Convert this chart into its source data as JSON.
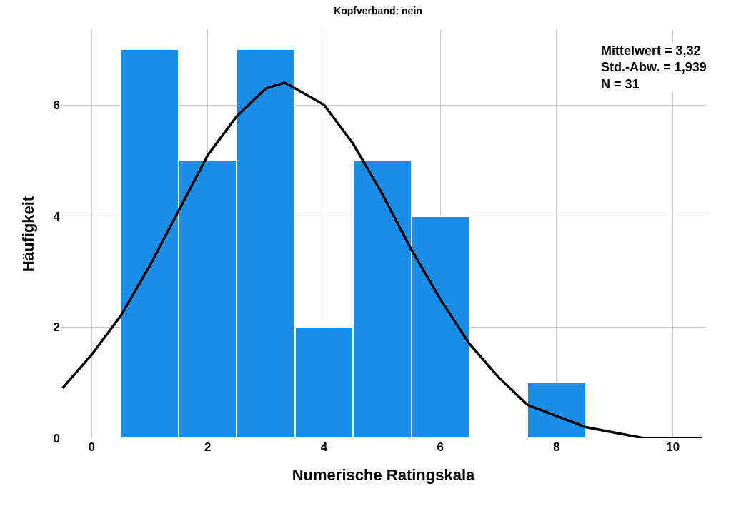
{
  "chart_data": {
    "type": "histogram",
    "title": "Kopfverband: nein",
    "xlabel": "Numerische Ratingskala",
    "ylabel": "Häufigkeit",
    "bins": [
      0.5,
      1.5,
      2.5,
      3.5,
      4.5,
      5.5,
      6.5,
      7.5,
      8.5
    ],
    "values": [
      7,
      5,
      7,
      2,
      5,
      4,
      0,
      1
    ],
    "color": "#1a8ee6",
    "series": [
      {
        "type": "line",
        "color": "#000000",
        "x": [
          -0.5,
          0,
          0.5,
          1,
          1.5,
          2,
          2.5,
          3,
          3.32,
          3.5,
          4,
          4.5,
          5,
          5.5,
          6,
          6.5,
          7,
          7.5,
          8,
          8.5,
          9,
          9.5,
          10,
          10.5
        ],
        "values": [
          0.9,
          1.5,
          2.2,
          3.1,
          4.1,
          5.1,
          5.8,
          6.3,
          6.4,
          6.3,
          6.0,
          5.3,
          4.4,
          3.4,
          2.5,
          1.7,
          1.1,
          0.6,
          0.4,
          0.2,
          0.1,
          0.0,
          0.0,
          0.0
        ]
      }
    ],
    "annotations": [
      "Mittelwert = 3,32",
      "Std.-Abw. = 1,939",
      "N = 31"
    ],
    "xlim": [
      -0.53,
      10.57
    ],
    "ylim": [
      0,
      7.35
    ],
    "xticks": [
      0,
      2,
      4,
      6,
      8,
      10
    ],
    "yticks": [
      0,
      2,
      4,
      6
    ],
    "grid": true
  }
}
